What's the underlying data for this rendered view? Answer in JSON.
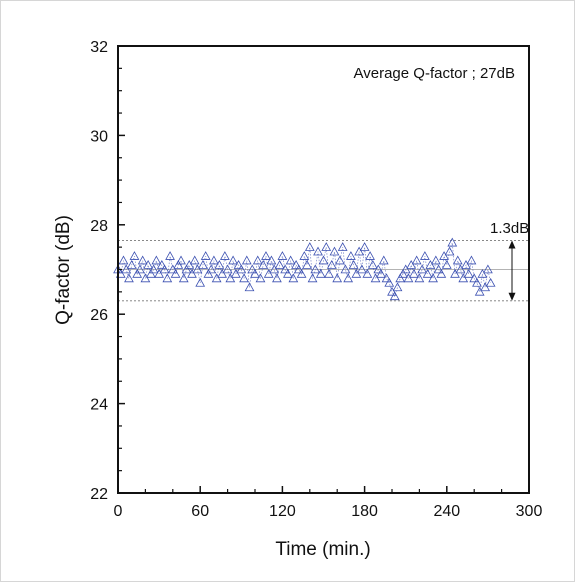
{
  "chart_data": {
    "type": "scatter",
    "xlabel": "Time (min.)",
    "ylabel": "Q-factor (dB)",
    "xlim": [
      0,
      300
    ],
    "ylim": [
      22,
      32
    ],
    "xticks": [
      0,
      60,
      120,
      180,
      240,
      300
    ],
    "yticks": [
      22,
      24,
      26,
      28,
      30,
      32
    ],
    "xtick_labels": [
      "0",
      "60",
      "120",
      "180",
      "240",
      "300"
    ],
    "ytick_labels": [
      "22",
      "24",
      "26",
      "28",
      "30",
      "32"
    ],
    "grid": false,
    "marker": "open-triangle",
    "marker_color": "#3a4fb0",
    "annotations": {
      "average": "Average Q-factor ; 27dB",
      "spread": "1.3dB"
    },
    "reference_lines": {
      "upper": 27.65,
      "mean": 27.0,
      "lower": 26.3
    },
    "series": [
      {
        "x": [
          0,
          2,
          4,
          6,
          8,
          10,
          12,
          14,
          16,
          18,
          20,
          22,
          24,
          26,
          28,
          30,
          32,
          34,
          36,
          38,
          40,
          42,
          44,
          46,
          48,
          50,
          52,
          54,
          56,
          58,
          60,
          62,
          64,
          66,
          68,
          70,
          72,
          74,
          76,
          78,
          80,
          82,
          84,
          86,
          88,
          90,
          92,
          94,
          96,
          98,
          100,
          102,
          104,
          106,
          108,
          110,
          112,
          114,
          116,
          118,
          120,
          122,
          124,
          126,
          128,
          130,
          132,
          134,
          136,
          138,
          140,
          142,
          144,
          146,
          148,
          150,
          152,
          154,
          156,
          158,
          160,
          162,
          164,
          166,
          168,
          170,
          172,
          174,
          176,
          178,
          180,
          182,
          184,
          186,
          188,
          190,
          192,
          194,
          196,
          198,
          200,
          202,
          204,
          206,
          208,
          210,
          212,
          214,
          216,
          218,
          220,
          222,
          224,
          226,
          228,
          230,
          232,
          234,
          236,
          238,
          240,
          242,
          244,
          246,
          248,
          250,
          252,
          254,
          256,
          258,
          260,
          262,
          264,
          266,
          268,
          270,
          272
        ],
        "y": [
          27.0,
          26.9,
          27.2,
          27.0,
          26.8,
          27.1,
          27.3,
          26.9,
          27.0,
          27.2,
          26.8,
          27.1,
          26.9,
          27.0,
          27.2,
          26.9,
          27.1,
          27.0,
          26.8,
          27.3,
          27.0,
          26.9,
          27.1,
          27.2,
          26.8,
          27.0,
          27.1,
          26.9,
          27.2,
          27.0,
          26.7,
          27.1,
          27.3,
          26.9,
          27.0,
          27.2,
          26.8,
          27.1,
          26.9,
          27.3,
          27.0,
          26.8,
          27.2,
          26.9,
          27.1,
          27.0,
          26.8,
          27.2,
          26.6,
          27.0,
          26.9,
          27.2,
          26.8,
          27.1,
          27.3,
          26.9,
          27.2,
          27.0,
          26.8,
          27.1,
          27.3,
          27.0,
          26.9,
          27.2,
          26.8,
          27.1,
          27.0,
          26.9,
          27.3,
          27.1,
          27.5,
          26.8,
          27.0,
          27.4,
          26.9,
          27.2,
          27.5,
          26.9,
          27.1,
          27.4,
          26.8,
          27.2,
          27.5,
          27.0,
          26.8,
          27.3,
          27.1,
          26.9,
          27.4,
          27.0,
          27.5,
          26.9,
          27.3,
          27.1,
          26.8,
          27.0,
          26.9,
          27.2,
          26.8,
          26.7,
          26.5,
          26.4,
          26.6,
          26.8,
          26.9,
          27.0,
          26.8,
          27.1,
          26.9,
          27.2,
          26.8,
          27.0,
          27.3,
          26.9,
          27.1,
          26.8,
          27.2,
          27.0,
          26.9,
          27.3,
          27.1,
          27.4,
          27.6,
          26.9,
          27.2,
          27.0,
          26.8,
          27.1,
          26.9,
          27.2,
          26.8,
          26.7,
          26.5,
          26.9,
          26.6,
          27.0,
          26.7
        ]
      }
    ]
  }
}
